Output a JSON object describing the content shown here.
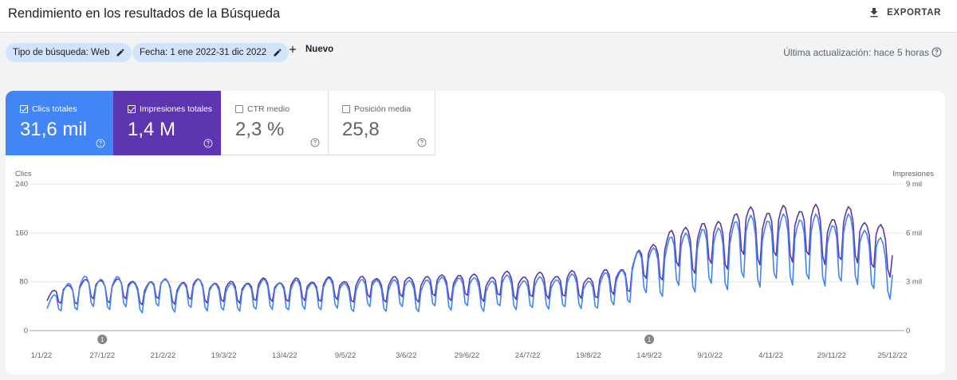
{
  "header": {
    "title": "Rendimiento en los resultados de la Búsqueda",
    "export_label": "EXPORTAR",
    "export_icon": "download-icon"
  },
  "filters": {
    "search_type": "Tipo de búsqueda: Web",
    "date": "Fecha: 1 ene 2022-31 dic 2022",
    "edit_icon": "pencil-icon",
    "new_label": "Nuevo",
    "new_icon": "plus-icon",
    "last_update": "Última actualización: hace 5 horas",
    "help_icon": "help-icon"
  },
  "metrics": [
    {
      "label": "Clics totales",
      "value": "31,6 mil",
      "checked": true,
      "color": "#4285f4"
    },
    {
      "label": "Impresiones totales",
      "value": "1,4 M",
      "checked": true,
      "color": "#5e35b1"
    },
    {
      "label": "CTR medio",
      "value": "2,3 %",
      "checked": false,
      "color": "#ffffff"
    },
    {
      "label": "Posición media",
      "value": "25,8",
      "checked": false,
      "color": "#ffffff"
    }
  ],
  "chart_data": {
    "type": "line",
    "left_axis_label": "Clics",
    "right_axis_label": "Impresiones",
    "left_ticks": [
      "240",
      "160",
      "80",
      "0"
    ],
    "right_ticks": [
      "9 mil",
      "6 mil",
      "3 mil",
      "0"
    ],
    "left_range": [
      0,
      240
    ],
    "right_range": [
      0,
      9000
    ],
    "x_tick_labels": [
      "1/1/22",
      "27/1/22",
      "21/2/22",
      "19/3/22",
      "13/4/22",
      "9/5/22",
      "3/6/22",
      "29/6/22",
      "24/7/22",
      "19/8/22",
      "14/9/22",
      "9/10/22",
      "4/11/22",
      "29/11/22",
      "25/12/22"
    ],
    "annotations": [
      {
        "x": "27/1/22",
        "label": "1"
      },
      {
        "x": "14/9/22",
        "label": "1"
      }
    ],
    "grid": true,
    "series": [
      {
        "name": "Clics totales",
        "axis": "left",
        "color": "#4285f4",
        "weekly_values": [
          35,
          62,
          72,
          68,
          74,
          66,
          62,
          70,
          64,
          66,
          68,
          58,
          66,
          64,
          68,
          64,
          66,
          68,
          66,
          64,
          70,
          66,
          68,
          66,
          70,
          72,
          70,
          66,
          72,
          70,
          68,
          70,
          74,
          68,
          72,
          78,
          96,
          112,
          118,
          130,
          136,
          132,
          146,
          150,
          152,
          148,
          156,
          150,
          146,
          150,
          145,
          130,
          90
        ]
      },
      {
        "name": "Impresiones totales",
        "axis": "right",
        "color": "#5e35b1",
        "weekly_values": [
          1800,
          2450,
          2600,
          2700,
          2750,
          2650,
          2550,
          2700,
          2600,
          2650,
          2700,
          2450,
          2650,
          2650,
          2700,
          2650,
          2700,
          2750,
          2700,
          2750,
          2850,
          2800,
          2850,
          2850,
          2900,
          3000,
          2950,
          2850,
          3050,
          3000,
          2950,
          3000,
          3100,
          2900,
          3050,
          3200,
          3800,
          4600,
          5000,
          5500,
          5700,
          5600,
          6200,
          6400,
          6500,
          6300,
          6700,
          6500,
          6200,
          6300,
          6200,
          5700,
          4600
        ]
      }
    ]
  }
}
